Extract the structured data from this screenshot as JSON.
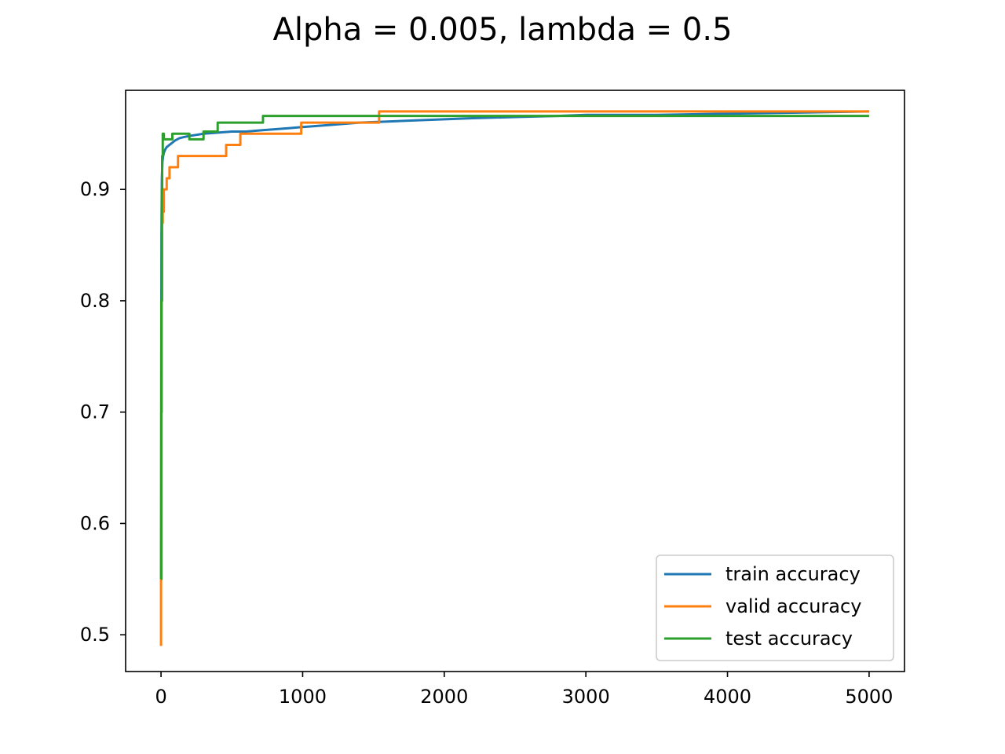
{
  "chart_data": {
    "type": "line",
    "title": "Alpha = 0.005, lambda = 0.5",
    "xlabel": "",
    "ylabel": "",
    "xlim": [
      -250,
      5250
    ],
    "ylim": [
      0.467,
      0.989
    ],
    "xticks": [
      0,
      1000,
      2000,
      3000,
      4000,
      5000
    ],
    "xtick_labels": [
      "0",
      "1000",
      "2000",
      "3000",
      "4000",
      "5000"
    ],
    "yticks": [
      0.5,
      0.6,
      0.7,
      0.8,
      0.9
    ],
    "ytick_labels": [
      "0.5",
      "0.6",
      "0.7",
      "0.8",
      "0.9"
    ],
    "grid": false,
    "legend_position": "lower right",
    "series": [
      {
        "name": "train accuracy",
        "color": "#1f77b4",
        "step": false,
        "x": [
          0,
          3,
          6,
          10,
          15,
          20,
          30,
          40,
          60,
          80,
          100,
          130,
          160,
          200,
          250,
          300,
          400,
          500,
          600,
          700,
          800,
          900,
          1000,
          1200,
          1400,
          1600,
          1800,
          2000,
          2200,
          2500,
          2800,
          3000,
          3500,
          4000,
          4500,
          5000
        ],
        "y": [
          0.55,
          0.86,
          0.91,
          0.925,
          0.93,
          0.933,
          0.936,
          0.938,
          0.94,
          0.942,
          0.944,
          0.946,
          0.947,
          0.948,
          0.949,
          0.95,
          0.951,
          0.952,
          0.952,
          0.953,
          0.954,
          0.955,
          0.956,
          0.958,
          0.96,
          0.961,
          0.962,
          0.963,
          0.964,
          0.965,
          0.966,
          0.967,
          0.967,
          0.968,
          0.969,
          0.97
        ]
      },
      {
        "name": "valid accuracy",
        "color": "#ff7f0e",
        "step": true,
        "x": [
          0,
          0,
          2,
          5,
          8,
          12,
          20,
          40,
          60,
          80,
          120,
          460,
          560,
          990,
          1540,
          5000
        ],
        "y": [
          0.49,
          0.55,
          0.7,
          0.8,
          0.87,
          0.88,
          0.9,
          0.91,
          0.92,
          0.92,
          0.93,
          0.94,
          0.95,
          0.96,
          0.97,
          0.97
        ]
      },
      {
        "name": "test accuracy",
        "color": "#2ca02c",
        "step": true,
        "x": [
          0,
          2,
          5,
          8,
          12,
          20,
          40,
          80,
          200,
          300,
          400,
          720,
          5000
        ],
        "y": [
          0.55,
          0.8,
          0.9,
          0.93,
          0.95,
          0.945,
          0.945,
          0.95,
          0.945,
          0.952,
          0.96,
          0.966,
          0.966
        ]
      }
    ]
  }
}
